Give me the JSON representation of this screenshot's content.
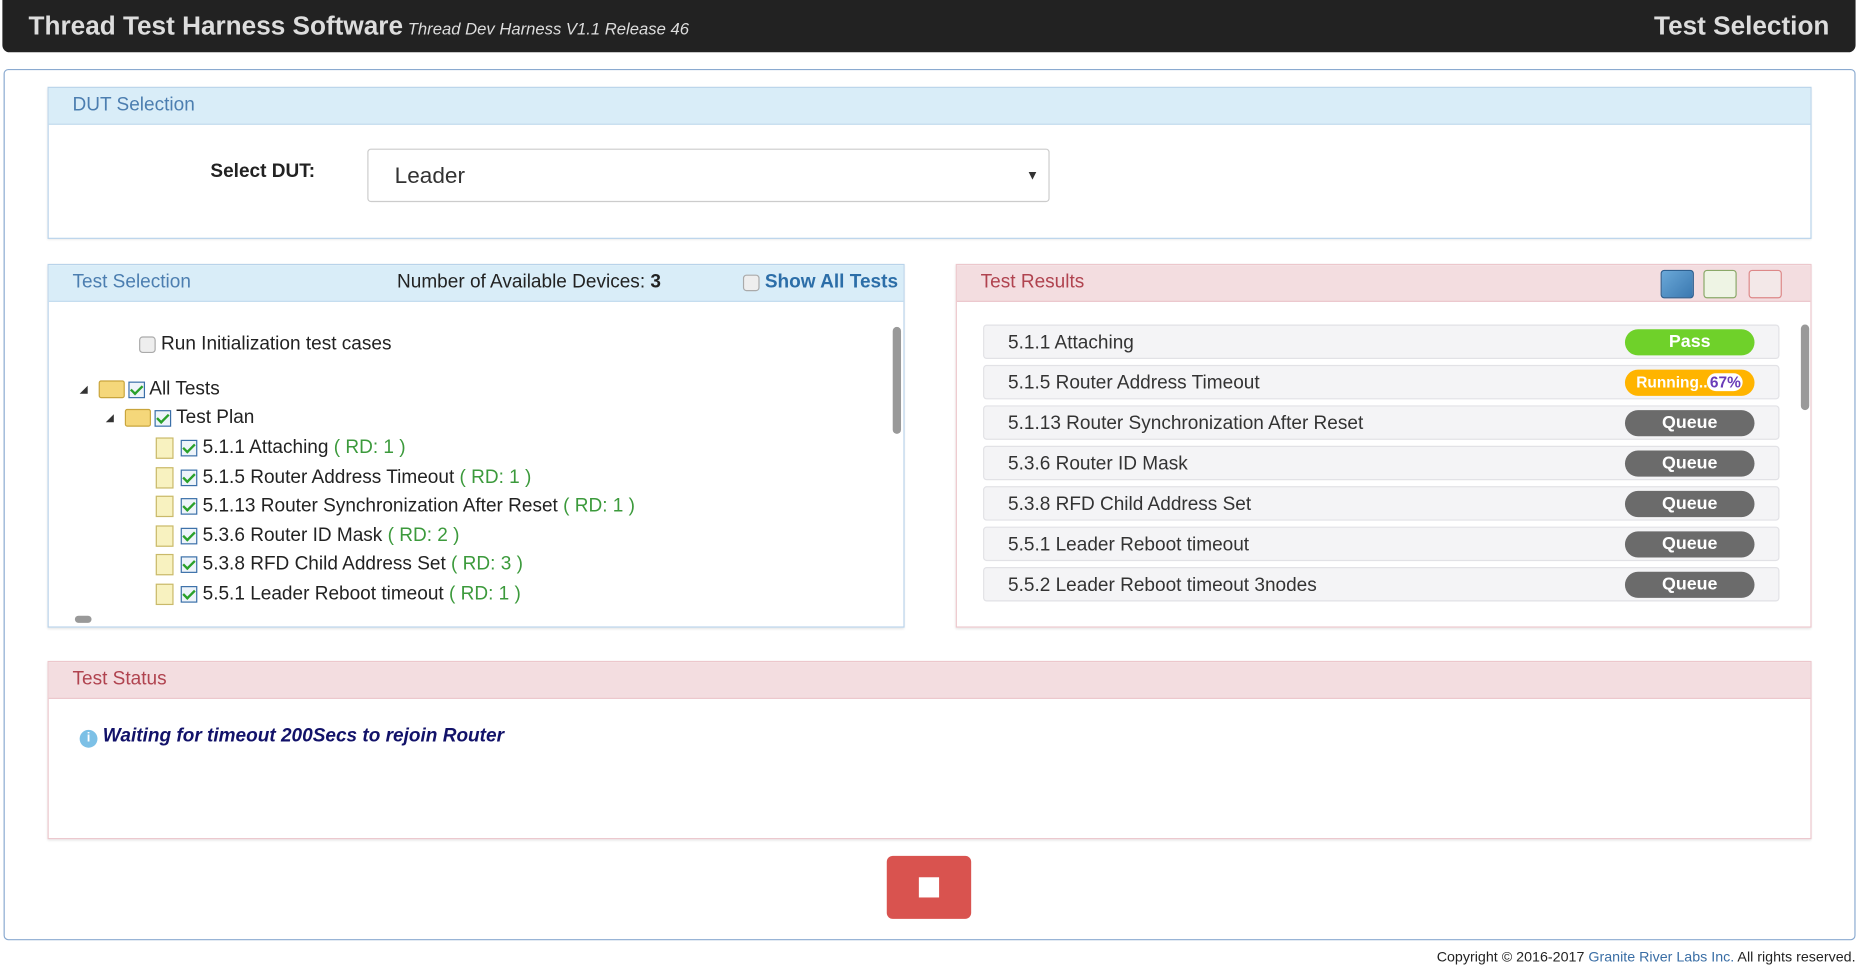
{
  "header": {
    "title": "Thread Test Harness Software",
    "subtitle": "Thread Dev Harness V1.1 Release 46",
    "page": "Test Selection"
  },
  "dut": {
    "panel_title": "DUT Selection",
    "label": "Select DUT:",
    "selected": "Leader"
  },
  "selection": {
    "panel_title": "Test Selection",
    "devices_label": "Number of Available Devices:",
    "devices_count": "3",
    "show_all_label": "Show All Tests",
    "run_init_label": "Run Initialization test cases",
    "root": "All Tests",
    "plan": "Test Plan",
    "items": [
      {
        "name": "5.1.1 Attaching",
        "rd": "( RD: 1 )"
      },
      {
        "name": "5.1.5 Router Address Timeout",
        "rd": "( RD: 1 )"
      },
      {
        "name": "5.1.13 Router Synchronization After Reset",
        "rd": "( RD: 1 )"
      },
      {
        "name": "5.3.6 Router ID Mask",
        "rd": "( RD: 2 )"
      },
      {
        "name": "5.3.8 RFD Child Address Set",
        "rd": "( RD: 3 )"
      },
      {
        "name": "5.5.1 Leader Reboot timeout",
        "rd": "( RD: 1 )"
      }
    ]
  },
  "results": {
    "panel_title": "Test Results",
    "icons": [
      "chart-export-icon",
      "excel-export-icon",
      "pdf-export-icon"
    ],
    "rows": [
      {
        "name": "5.1.1 Attaching",
        "status": "Pass",
        "color": "#6fd12a"
      },
      {
        "name": "5.1.5 Router Address Timeout",
        "status": "Running..",
        "progress": "67%",
        "color": "#ffb400"
      },
      {
        "name": "5.1.13 Router Synchronization After Reset",
        "status": "Queue",
        "color": "#6b6b6b"
      },
      {
        "name": "5.3.6 Router ID Mask",
        "status": "Queue",
        "color": "#6b6b6b"
      },
      {
        "name": "5.3.8 RFD Child Address Set",
        "status": "Queue",
        "color": "#6b6b6b"
      },
      {
        "name": "5.5.1 Leader Reboot timeout",
        "status": "Queue",
        "color": "#6b6b6b"
      },
      {
        "name": "5.5.2 Leader Reboot timeout 3nodes",
        "status": "Queue",
        "color": "#6b6b6b"
      }
    ]
  },
  "status": {
    "panel_title": "Test Status",
    "message": "Waiting for timeout 200Secs to rejoin Router"
  },
  "stop_button": {
    "color": "#d9534f"
  },
  "footer": {
    "prefix": "Copyright © 2016-2017",
    "company": "Granite River Labs Inc.",
    "suffix": "All rights reserved."
  }
}
